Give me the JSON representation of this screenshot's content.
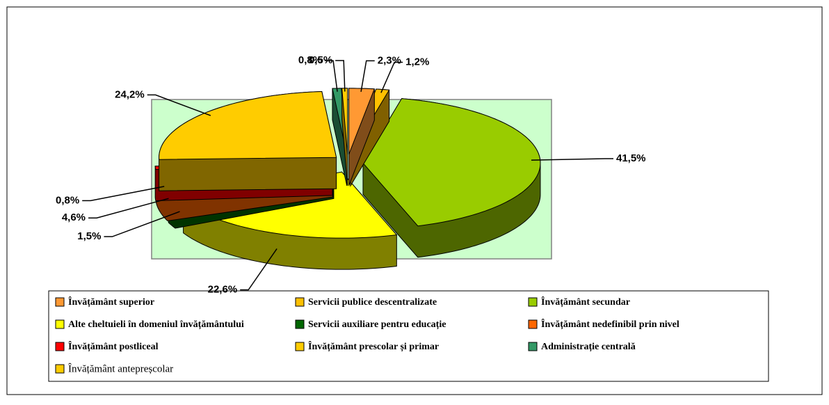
{
  "chart_data": {
    "type": "pie",
    "categories": [
      "Învățământ superior",
      "Servicii publice descentralizate",
      "Învățământ secundar",
      "Alte cheltuieli în domeniul învățământului",
      "Servicii auxiliare pentru educație",
      "Învățământ nedefinibil prin nivel",
      "Învățământ postliceal",
      "Învățământ prescolar și primar",
      "Administrație centrală",
      "Învățământ antepreșcolar"
    ],
    "values": [
      2.3,
      1.2,
      41.5,
      22.6,
      1.5,
      4.6,
      0.8,
      24.2,
      0.8,
      0.5
    ],
    "value_labels": [
      "2,3%",
      "1,2%",
      "41,5%",
      "22,6%",
      "1,5%",
      "4,6%",
      "0,8%",
      "24,2%",
      "0,8%",
      "0,5%"
    ],
    "colors": [
      "#ff9933",
      "#ffc000",
      "#99cc00",
      "#ffff00",
      "#006600",
      "#ff6600",
      "#ff0000",
      "#ffcc00",
      "#339966",
      "#ffcc00"
    ],
    "legend": "bottom"
  }
}
